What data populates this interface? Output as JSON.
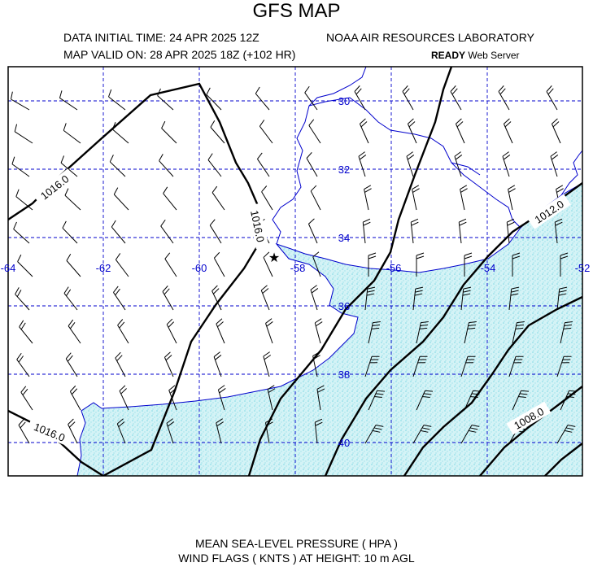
{
  "header": {
    "title": "GFS MAP",
    "init_time": "DATA INITIAL TIME: 24 APR 2025 12Z",
    "valid_time": "MAP VALID ON: 28 APR 2025 18Z (+102 HR)",
    "lab": "NOAA AIR RESOURCES LABORATORY",
    "server_bold": "READY",
    "server_rest": " Web Server"
  },
  "footer": {
    "line1": "MEAN SEA-LEVEL PRESSURE ( HPA  )",
    "line2": "WIND FLAGS ( KNTS ) AT HEIGHT: 10 m AGL"
  },
  "map": {
    "lon_labels": [
      "-64",
      "-62",
      "-60",
      "-58",
      "-56",
      "-54",
      "-52"
    ],
    "lat_labels": [
      "30",
      "32",
      "34",
      "36",
      "38",
      "40"
    ],
    "isobar_labels": [
      "1016.0",
      "1016.0",
      "1016.0",
      "1012.0",
      "1008.0"
    ],
    "colors": {
      "grid": "#0000cc",
      "coast": "#0000cc",
      "land_fill": "#c8f0f4",
      "isobar": "#000000"
    },
    "marker": "star"
  }
}
